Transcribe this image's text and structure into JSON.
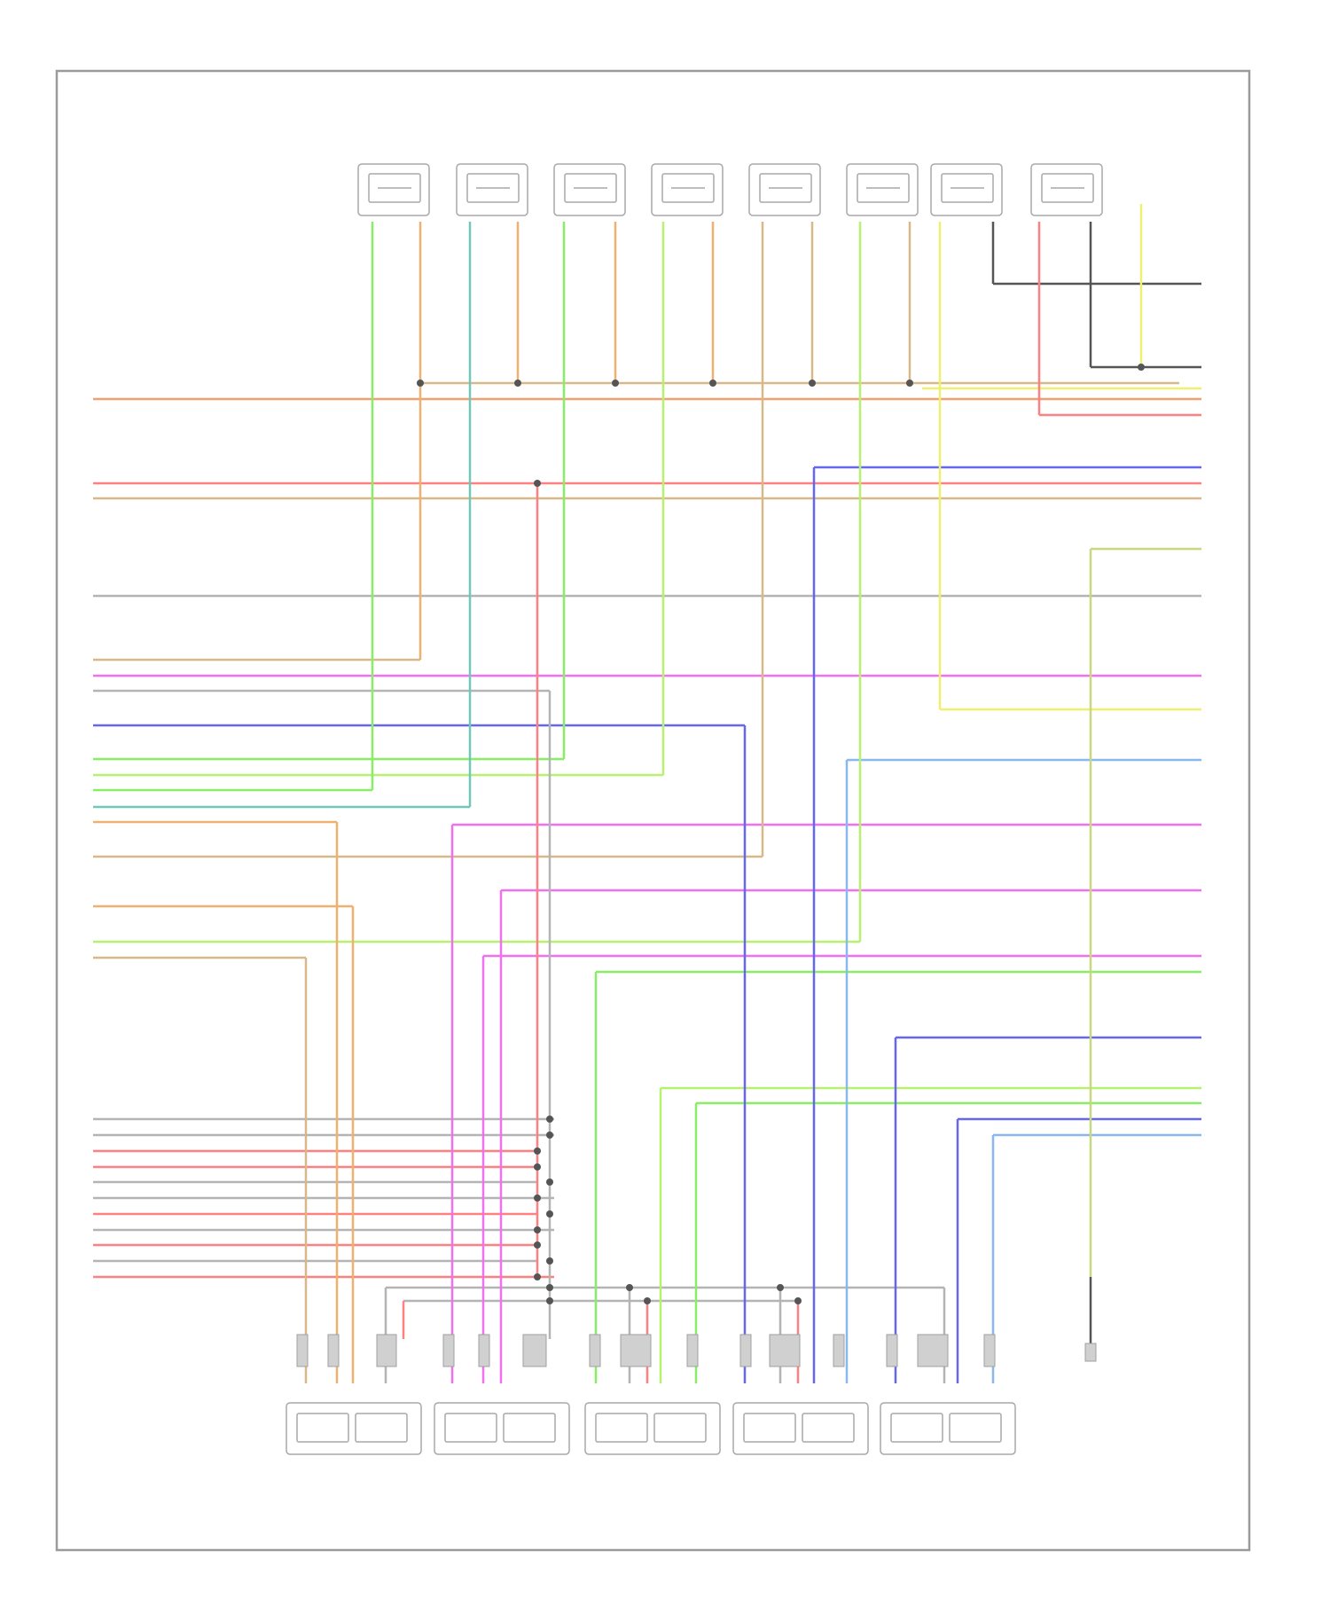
{
  "colors": {
    "frame": "#9a9a9a",
    "component_outline": "#a8a8a8",
    "splice": "#555555",
    "green": "#88ee66",
    "orange": "#f0b070",
    "teal": "#70c8b8",
    "tan": "#d8b888",
    "red": "#ff8080",
    "gray": "#b4b4b4",
    "magenta": "#f070f0",
    "blue": "#6666ee",
    "yellow": "#f0f070",
    "olive": "#c8d880",
    "lightblue": "#88b8ee",
    "lime": "#b8f070",
    "dark": "#555555"
  },
  "top_sensors": [
    {
      "caption": [
        "",
        "",
        "",
        "",
        ""
      ],
      "pins": [
        "",
        ""
      ]
    },
    {
      "caption": [
        "",
        "",
        "",
        "",
        ""
      ],
      "pins": [
        "",
        ""
      ]
    },
    {
      "caption": [
        "",
        "",
        "",
        "",
        ""
      ],
      "pins": [
        "",
        ""
      ]
    },
    {
      "caption": [
        "",
        "",
        "",
        "",
        ""
      ],
      "pins": [
        "",
        ""
      ]
    },
    {
      "caption": [
        "",
        "",
        "",
        "",
        ""
      ],
      "pins": [
        "",
        ""
      ]
    },
    {
      "caption": [
        "",
        "",
        "",
        "",
        ""
      ],
      "pins": [
        "",
        ""
      ]
    },
    {
      "caption": [
        "",
        "",
        "",
        "",
        ""
      ],
      "pins": [
        "",
        ""
      ]
    },
    {
      "caption": [
        "",
        "",
        "",
        "",
        ""
      ],
      "pins": [
        "",
        ""
      ]
    }
  ],
  "pressure_sensor": {
    "caption": [
      "",
      "",
      "",
      "",
      ""
    ]
  },
  "bottom_sensors": [
    {
      "caption": [
        "",
        "",
        ""
      ]
    },
    {
      "caption": [
        "",
        "",
        "",
        ""
      ]
    },
    {
      "caption": [
        "",
        "",
        "",
        "",
        ""
      ]
    },
    {
      "caption": [
        "",
        "",
        "",
        "",
        ""
      ]
    },
    {
      "caption": [
        "",
        "",
        ""
      ]
    }
  ],
  "bottom_switch": {
    "caption": [
      "",
      "",
      "",
      "",
      "",
      "",
      ""
    ]
  },
  "left_wire_labels": [],
  "right_wire_labels": [],
  "footer_code": ""
}
